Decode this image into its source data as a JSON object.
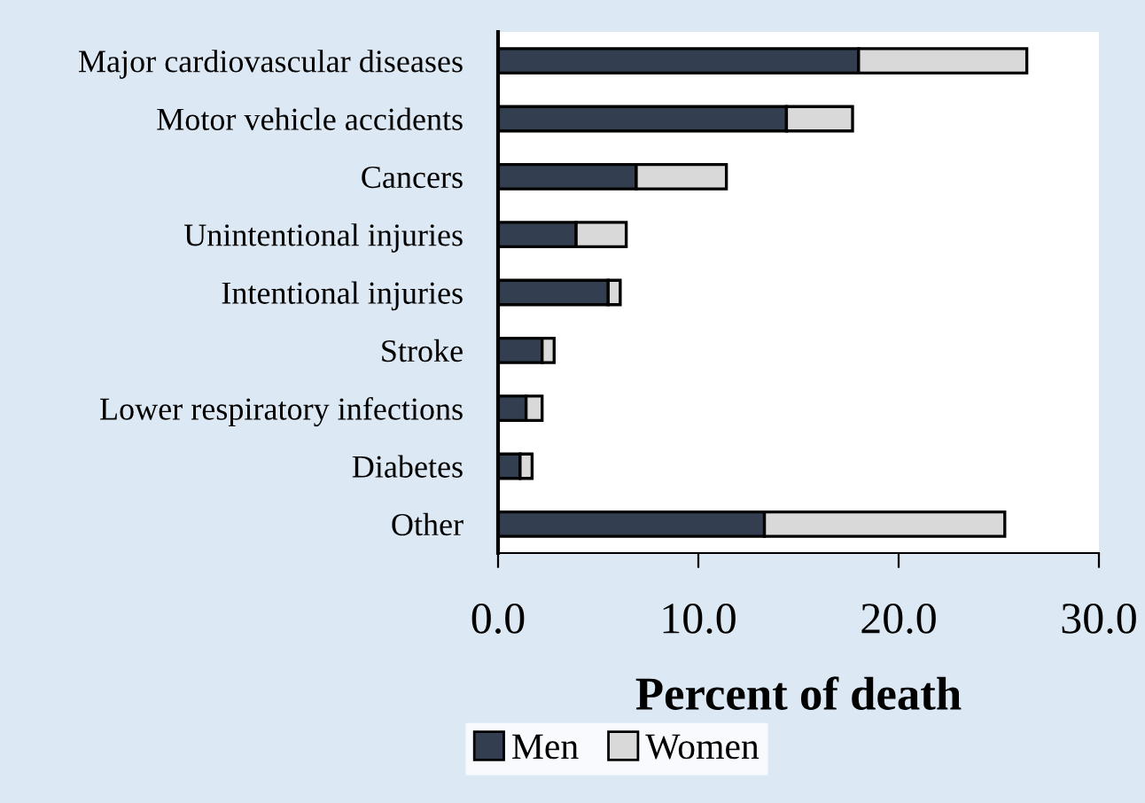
{
  "chart_data": {
    "type": "bar",
    "orientation": "horizontal",
    "stacked": true,
    "xlabel": "Percent of death",
    "categories": [
      "Major cardiovascular diseases",
      "Motor vehicle accidents",
      "Cancers",
      "Unintentional injuries",
      "Intentional injuries",
      "Stroke",
      "Lower respiratory infections",
      "Diabetes",
      "Other"
    ],
    "series": [
      {
        "name": "Men",
        "color": "#333f50",
        "values": [
          18.0,
          14.4,
          6.9,
          3.9,
          5.5,
          2.2,
          1.4,
          1.1,
          13.3
        ]
      },
      {
        "name": "Women",
        "color": "#d9d9d9",
        "values": [
          8.4,
          3.3,
          4.5,
          2.5,
          0.6,
          0.6,
          0.8,
          0.6,
          12.0
        ]
      }
    ],
    "xlim": [
      0,
      30
    ],
    "xticks": [
      {
        "value": 0,
        "label": "0.0"
      },
      {
        "value": 10,
        "label": "10.0"
      },
      {
        "value": 20,
        "label": "20.0"
      },
      {
        "value": 30,
        "label": "30.0"
      }
    ],
    "grid": false,
    "legend": "bottom"
  }
}
